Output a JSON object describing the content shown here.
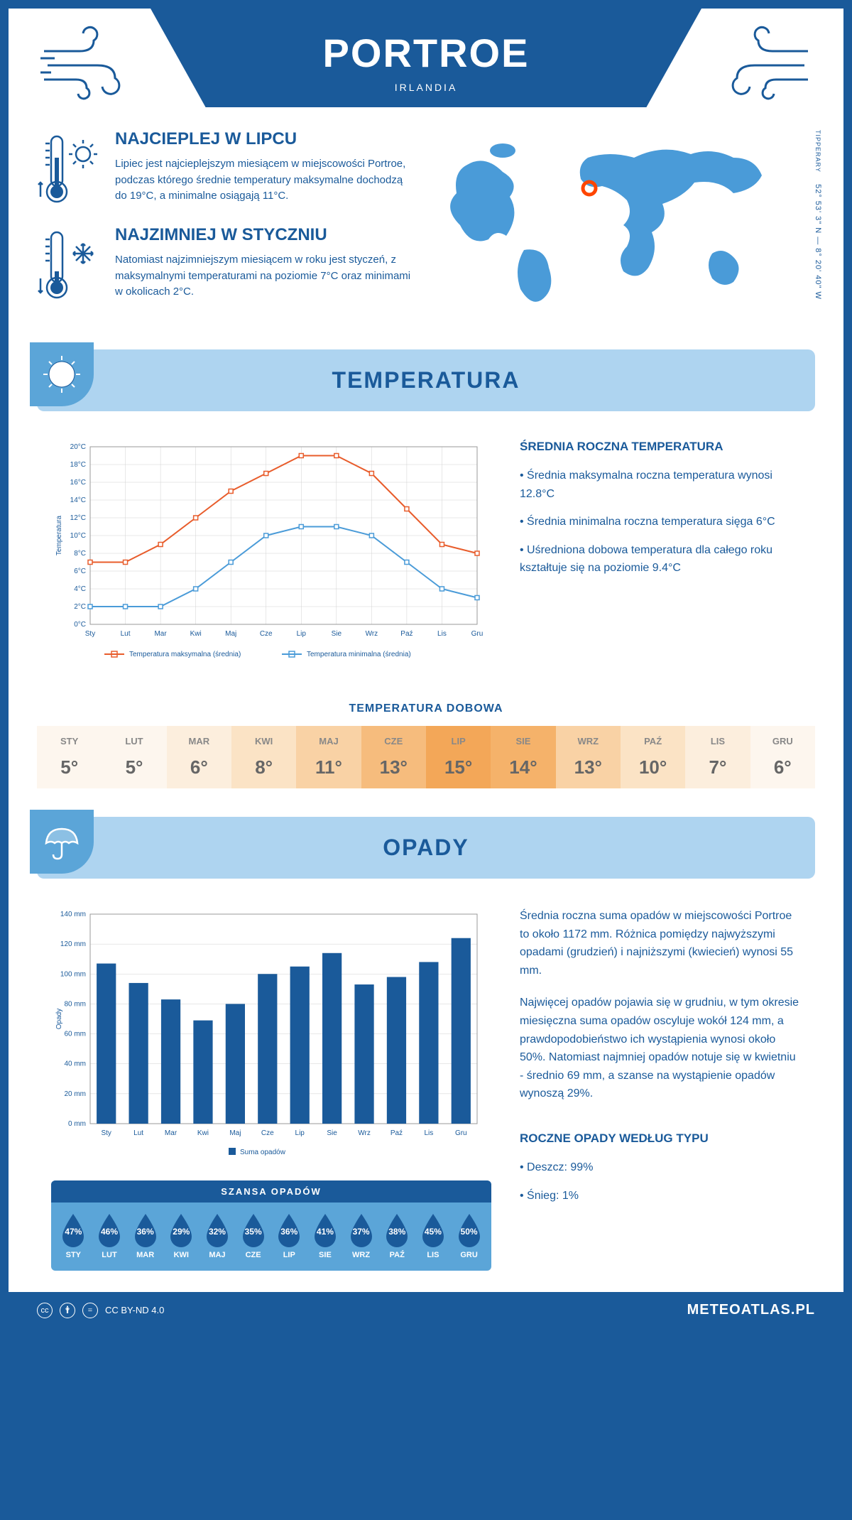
{
  "header": {
    "city": "PORTROE",
    "country": "IRLANDIA"
  },
  "coords": {
    "text": "52° 53' 3\" N — 8° 20' 40\" W",
    "region": "TIPPERARY"
  },
  "marker": {
    "cx_pct": 44.5,
    "cy_pct": 32
  },
  "hot": {
    "title": "NAJCIEPLEJ W LIPCU",
    "text": "Lipiec jest najcieplejszym miesiącem w miejscowości Portroe, podczas którego średnie temperatury maksymalne dochodzą do 19°C, a minimalne osiągają 11°C."
  },
  "cold": {
    "title": "NAJZIMNIEJ W STYCZNIU",
    "text": "Natomiast najzimniejszym miesiącem w roku jest styczeń, z maksymalnymi temperaturami na poziomie 7°C oraz minimami w okolicach 2°C."
  },
  "temp_section": {
    "title": "TEMPERATURA",
    "side_title": "ŚREDNIA ROCZNA TEMPERATURA",
    "bullets": [
      "• Średnia maksymalna roczna temperatura wynosi 12.8°C",
      "• Średnia minimalna roczna temperatura sięga 6°C",
      "• Uśredniona dobowa temperatura dla całego roku kształtuje się na poziomie 9.4°C"
    ],
    "chart": {
      "months": [
        "Sty",
        "Lut",
        "Mar",
        "Kwi",
        "Maj",
        "Cze",
        "Lip",
        "Sie",
        "Wrz",
        "Paź",
        "Lis",
        "Gru"
      ],
      "max_series": [
        7,
        7,
        9,
        12,
        15,
        17,
        19,
        19,
        17,
        13,
        9,
        8
      ],
      "min_series": [
        2,
        2,
        2,
        4,
        7,
        10,
        11,
        11,
        10,
        7,
        4,
        3
      ],
      "ylim": [
        0,
        20
      ],
      "ytick_step": 2,
      "max_color": "#e85c2b",
      "min_color": "#4a9bd8",
      "grid_color": "#d0d0d0",
      "y_label": "Temperatura",
      "legend_max": "Temperatura maksymalna (średnia)",
      "legend_min": "Temperatura minimalna (średnia)"
    },
    "daily_title": "TEMPERATURA DOBOWA",
    "daily": {
      "months": [
        "STY",
        "LUT",
        "MAR",
        "KWI",
        "MAJ",
        "CZE",
        "LIP",
        "SIE",
        "WRZ",
        "PAŹ",
        "LIS",
        "GRU"
      ],
      "values": [
        "5°",
        "5°",
        "6°",
        "8°",
        "11°",
        "13°",
        "15°",
        "14°",
        "13°",
        "10°",
        "7°",
        "6°"
      ],
      "colors": [
        "#fdf6ee",
        "#fdf6ee",
        "#fceedd",
        "#fbe3c5",
        "#f9d2a5",
        "#f6bc7d",
        "#f3a758",
        "#f5b26a",
        "#f9d2a5",
        "#fbe3c5",
        "#fceedd",
        "#fdf6ee"
      ]
    }
  },
  "rain_section": {
    "title": "OPADY",
    "chart": {
      "months": [
        "Sty",
        "Lut",
        "Mar",
        "Kwi",
        "Maj",
        "Cze",
        "Lip",
        "Sie",
        "Wrz",
        "Paź",
        "Lis",
        "Gru"
      ],
      "values": [
        107,
        94,
        83,
        69,
        80,
        100,
        105,
        114,
        93,
        98,
        108,
        124
      ],
      "ylim": [
        0,
        140
      ],
      "ytick_step": 20,
      "bar_color": "#1a5a9a",
      "y_label": "Opady",
      "legend": "Suma opadów"
    },
    "text1": "Średnia roczna suma opadów w miejscowości Portroe to około 1172 mm. Różnica pomiędzy najwyższymi opadami (grudzień) i najniższymi (kwiecień) wynosi 55 mm.",
    "text2": "Najwięcej opadów pojawia się w grudniu, w tym okresie miesięczna suma opadów oscyluje wokół 124 mm, a prawdopodobieństwo ich wystąpienia wynosi około 50%. Natomiast najmniej opadów notuje się w kwietniu - średnio 69 mm, a szanse na wystąpienie opadów wynoszą 29%.",
    "chance_title": "SZANSA OPADÓW",
    "chance": {
      "months": [
        "STY",
        "LUT",
        "MAR",
        "KWI",
        "MAJ",
        "CZE",
        "LIP",
        "SIE",
        "WRZ",
        "PAŹ",
        "LIS",
        "GRU"
      ],
      "values": [
        "47%",
        "46%",
        "36%",
        "29%",
        "32%",
        "35%",
        "36%",
        "41%",
        "37%",
        "38%",
        "45%",
        "50%"
      ]
    },
    "type_title": "ROCZNE OPADY WEDŁUG TYPU",
    "types": [
      "• Deszcz: 99%",
      "• Śnieg: 1%"
    ]
  },
  "footer": {
    "license": "CC BY-ND 4.0",
    "site": "METEOATLAS.PL"
  }
}
